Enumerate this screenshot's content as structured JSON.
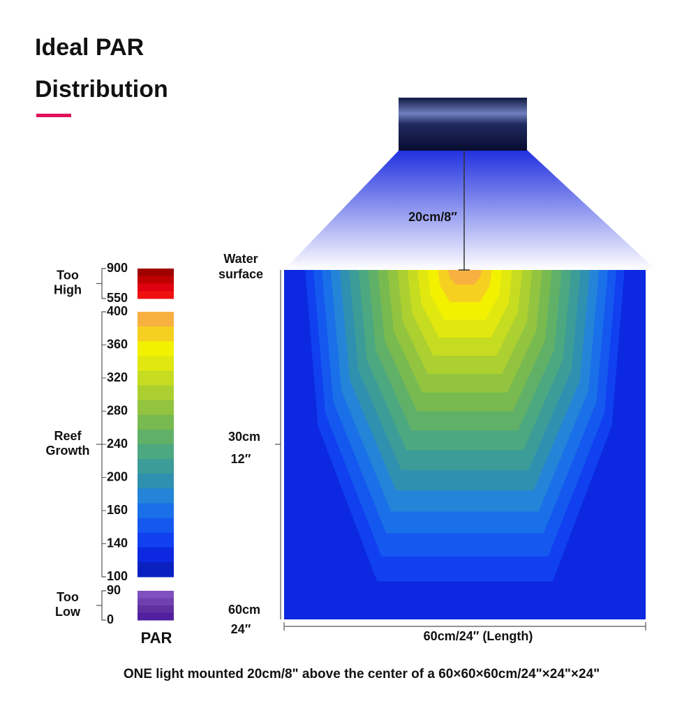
{
  "header": {
    "title": [
      "Ideal PAR",
      "Distribution"
    ]
  },
  "light": {
    "distance": "20cm/8″"
  },
  "legend": {
    "title": "PAR",
    "groups": [
      {
        "label": [
          "Too",
          "High"
        ],
        "ticks": [
          900,
          550
        ]
      },
      {
        "label": [
          "Reef",
          "Growth"
        ],
        "ticks": [
          400,
          360,
          320,
          280,
          240,
          200,
          160,
          140,
          100
        ]
      },
      {
        "label": [
          "Too",
          "Low"
        ],
        "ticks": [
          90,
          0
        ]
      }
    ]
  },
  "tank": {
    "surface": [
      "Water",
      "surface"
    ],
    "depth_mid": [
      "30cm",
      "12″"
    ],
    "depth_bottom": [
      "60cm",
      "24″"
    ],
    "length": "60cm/24″  (Length)"
  },
  "caption": "ONE light mounted 20cm/8\" above the center of a 60×60×60cm/24\"×24\"×24\""
}
